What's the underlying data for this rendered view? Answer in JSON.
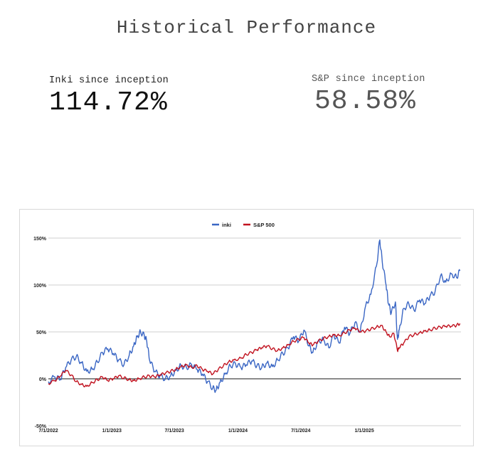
{
  "page": {
    "title": "Historical Performance"
  },
  "stats": {
    "inki": {
      "label": "Inki since inception",
      "value": "114.72%"
    },
    "sp": {
      "label": "S&P since inception",
      "value": "58.58%"
    }
  },
  "colors": {
    "inki": "#3a66c4",
    "sp": "#c1121f",
    "grid": "#cfcfcf",
    "zero": "#444444"
  },
  "chart_data": {
    "type": "line",
    "title": "",
    "xlabel": "",
    "ylabel": "",
    "xlim": [
      "2022-07-01",
      "2025-10-08"
    ],
    "ylim": [
      -50,
      150
    ],
    "yticks": [
      150,
      100,
      50,
      0,
      -50
    ],
    "ytick_labels": [
      "150%",
      "100%",
      "50%",
      "0%",
      "-50%"
    ],
    "xticks": [
      "2022-07-01",
      "2023-01-01",
      "2023-07-01",
      "2024-01-01",
      "2024-07-01",
      "2025-01-01"
    ],
    "xtick_labels": [
      "7/1/2022",
      "1/1/2023",
      "7/1/2023",
      "1/1/2024",
      "7/1/2024",
      "1/1/2025"
    ],
    "grid": true,
    "legend_position": "top-center",
    "series": [
      {
        "name": "inki",
        "color": "#3a66c4",
        "points": [
          [
            "2022-07-01",
            -3
          ],
          [
            "2022-07-20",
            2
          ],
          [
            "2022-08-05",
            -1
          ],
          [
            "2022-08-20",
            12
          ],
          [
            "2022-09-05",
            20
          ],
          [
            "2022-09-20",
            24
          ],
          [
            "2022-10-05",
            17
          ],
          [
            "2022-10-20",
            8
          ],
          [
            "2022-11-05",
            10
          ],
          [
            "2022-11-20",
            18
          ],
          [
            "2022-12-05",
            28
          ],
          [
            "2022-12-20",
            32
          ],
          [
            "2023-01-05",
            27
          ],
          [
            "2023-01-20",
            20
          ],
          [
            "2023-02-05",
            15
          ],
          [
            "2023-02-20",
            25
          ],
          [
            "2023-03-05",
            35
          ],
          [
            "2023-03-15",
            45
          ],
          [
            "2023-03-25",
            50
          ],
          [
            "2023-04-05",
            46
          ],
          [
            "2023-04-12",
            40
          ],
          [
            "2023-04-20",
            20
          ],
          [
            "2023-05-05",
            8
          ],
          [
            "2023-05-20",
            3
          ],
          [
            "2023-06-05",
            0
          ],
          [
            "2023-06-20",
            3
          ],
          [
            "2023-07-05",
            9
          ],
          [
            "2023-07-20",
            14
          ],
          [
            "2023-08-05",
            12
          ],
          [
            "2023-08-20",
            15
          ],
          [
            "2023-09-05",
            10
          ],
          [
            "2023-09-20",
            5
          ],
          [
            "2023-10-05",
            -3
          ],
          [
            "2023-10-20",
            -10
          ],
          [
            "2023-10-30",
            -12
          ],
          [
            "2023-11-10",
            -4
          ],
          [
            "2023-11-25",
            5
          ],
          [
            "2023-12-10",
            14
          ],
          [
            "2023-12-25",
            16
          ],
          [
            "2024-01-10",
            12
          ],
          [
            "2024-01-25",
            15
          ],
          [
            "2024-02-10",
            19
          ],
          [
            "2024-02-25",
            14
          ],
          [
            "2024-03-10",
            12
          ],
          [
            "2024-03-25",
            17
          ],
          [
            "2024-04-10",
            13
          ],
          [
            "2024-04-25",
            20
          ],
          [
            "2024-05-10",
            27
          ],
          [
            "2024-05-25",
            33
          ],
          [
            "2024-06-10",
            45
          ],
          [
            "2024-06-25",
            40
          ],
          [
            "2024-07-10",
            52
          ],
          [
            "2024-07-25",
            35
          ],
          [
            "2024-08-05",
            28
          ],
          [
            "2024-08-20",
            40
          ],
          [
            "2024-09-05",
            42
          ],
          [
            "2024-09-20",
            33
          ],
          [
            "2024-10-05",
            47
          ],
          [
            "2024-10-20",
            38
          ],
          [
            "2024-11-05",
            55
          ],
          [
            "2024-11-20",
            48
          ],
          [
            "2024-12-05",
            60
          ],
          [
            "2024-12-20",
            50
          ],
          [
            "2025-01-05",
            78
          ],
          [
            "2025-01-20",
            90
          ],
          [
            "2025-02-05",
            120
          ],
          [
            "2025-02-15",
            148
          ],
          [
            "2025-02-22",
            125
          ],
          [
            "2025-03-05",
            100
          ],
          [
            "2025-03-12",
            80
          ],
          [
            "2025-03-20",
            70
          ],
          [
            "2025-04-01",
            82
          ],
          [
            "2025-04-07",
            42
          ],
          [
            "2025-04-12",
            52
          ],
          [
            "2025-04-25",
            75
          ],
          [
            "2025-05-10",
            80
          ],
          [
            "2025-05-25",
            73
          ],
          [
            "2025-06-10",
            84
          ],
          [
            "2025-06-25",
            80
          ],
          [
            "2025-07-10",
            88
          ],
          [
            "2025-07-25",
            93
          ],
          [
            "2025-08-10",
            110
          ],
          [
            "2025-08-25",
            103
          ],
          [
            "2025-09-10",
            112
          ],
          [
            "2025-09-25",
            108
          ],
          [
            "2025-10-05",
            115
          ]
        ]
      },
      {
        "name": "S&P 500",
        "color": "#c1121f",
        "points": [
          [
            "2022-07-01",
            -5
          ],
          [
            "2022-07-20",
            -2
          ],
          [
            "2022-08-05",
            3
          ],
          [
            "2022-08-20",
            9
          ],
          [
            "2022-09-05",
            4
          ],
          [
            "2022-09-20",
            -3
          ],
          [
            "2022-10-05",
            -6
          ],
          [
            "2022-10-20",
            -8
          ],
          [
            "2022-11-05",
            -4
          ],
          [
            "2022-11-20",
            -1
          ],
          [
            "2022-12-05",
            2
          ],
          [
            "2022-12-20",
            -2
          ],
          [
            "2023-01-05",
            0
          ],
          [
            "2023-01-20",
            3
          ],
          [
            "2023-02-05",
            1
          ],
          [
            "2023-02-20",
            -1
          ],
          [
            "2023-03-05",
            -2
          ],
          [
            "2023-03-20",
            0
          ],
          [
            "2023-04-05",
            2
          ],
          [
            "2023-04-20",
            3
          ],
          [
            "2023-05-05",
            2
          ],
          [
            "2023-05-20",
            4
          ],
          [
            "2023-06-05",
            6
          ],
          [
            "2023-06-20",
            8
          ],
          [
            "2023-07-05",
            10
          ],
          [
            "2023-07-20",
            13
          ],
          [
            "2023-08-05",
            15
          ],
          [
            "2023-08-20",
            12
          ],
          [
            "2023-09-05",
            14
          ],
          [
            "2023-09-20",
            10
          ],
          [
            "2023-10-05",
            8
          ],
          [
            "2023-10-20",
            5
          ],
          [
            "2023-11-05",
            10
          ],
          [
            "2023-11-20",
            14
          ],
          [
            "2023-12-05",
            18
          ],
          [
            "2023-12-20",
            20
          ],
          [
            "2024-01-10",
            22
          ],
          [
            "2024-01-25",
            26
          ],
          [
            "2024-02-10",
            28
          ],
          [
            "2024-02-25",
            31
          ],
          [
            "2024-03-10",
            33
          ],
          [
            "2024-03-25",
            35
          ],
          [
            "2024-04-10",
            32
          ],
          [
            "2024-04-25",
            30
          ],
          [
            "2024-05-10",
            33
          ],
          [
            "2024-05-25",
            36
          ],
          [
            "2024-06-10",
            40
          ],
          [
            "2024-06-25",
            42
          ],
          [
            "2024-07-10",
            44
          ],
          [
            "2024-07-25",
            38
          ],
          [
            "2024-08-05",
            36
          ],
          [
            "2024-08-20",
            40
          ],
          [
            "2024-09-05",
            43
          ],
          [
            "2024-09-20",
            45
          ],
          [
            "2024-10-05",
            47
          ],
          [
            "2024-10-20",
            46
          ],
          [
            "2024-11-05",
            49
          ],
          [
            "2024-11-20",
            52
          ],
          [
            "2024-12-05",
            54
          ],
          [
            "2024-12-20",
            50
          ],
          [
            "2025-01-05",
            51
          ],
          [
            "2025-01-20",
            53
          ],
          [
            "2025-02-05",
            55
          ],
          [
            "2025-02-20",
            57
          ],
          [
            "2025-03-05",
            50
          ],
          [
            "2025-03-15",
            45
          ],
          [
            "2025-03-28",
            48
          ],
          [
            "2025-04-07",
            30
          ],
          [
            "2025-04-12",
            33
          ],
          [
            "2025-04-25",
            38
          ],
          [
            "2025-05-10",
            45
          ],
          [
            "2025-05-25",
            47
          ],
          [
            "2025-06-10",
            49
          ],
          [
            "2025-06-25",
            51
          ],
          [
            "2025-07-10",
            52
          ],
          [
            "2025-07-25",
            54
          ],
          [
            "2025-08-10",
            55
          ],
          [
            "2025-08-25",
            56
          ],
          [
            "2025-09-10",
            56
          ],
          [
            "2025-09-25",
            57
          ],
          [
            "2025-10-05",
            59
          ]
        ]
      }
    ]
  }
}
